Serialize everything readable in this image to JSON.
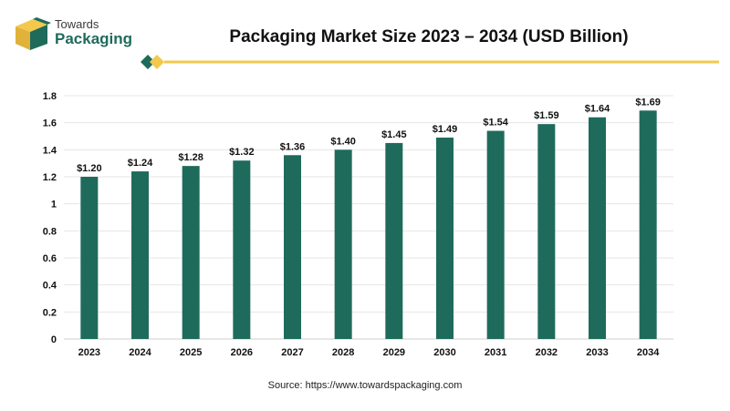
{
  "brand": {
    "line1": "Towards",
    "line2": "Packaging",
    "colors": {
      "dark_green": "#1e6b5c",
      "gold": "#f2c94c"
    }
  },
  "source": "Source: https://www.towardspackaging.com",
  "chart_data": {
    "type": "bar",
    "title": "Packaging Market Size 2023 – 2034 (USD Billion)",
    "categories": [
      "2023",
      "2024",
      "2025",
      "2026",
      "2027",
      "2028",
      "2029",
      "2030",
      "2031",
      "2032",
      "2033",
      "2034"
    ],
    "values": [
      1.2,
      1.24,
      1.28,
      1.32,
      1.36,
      1.4,
      1.45,
      1.49,
      1.54,
      1.59,
      1.64,
      1.69
    ],
    "data_labels": [
      "$1.20",
      "$1.24",
      "$1.28",
      "$1.32",
      "$1.36",
      "$1.40",
      "$1.45",
      "$1.49",
      "$1.54",
      "$1.59",
      "$1.64",
      "$1.69"
    ],
    "y_ticks": [
      0,
      0.2,
      0.4,
      0.6,
      0.8,
      1,
      1.2,
      1.4,
      1.6,
      1.8
    ],
    "y_tick_labels": [
      "0",
      "0.2",
      "0.4",
      "0.6",
      "0.8",
      "1",
      "1.2",
      "1.4",
      "1.6",
      "1.8"
    ],
    "ylim": [
      0,
      1.8
    ],
    "grid": true,
    "bar_color": "#1e6b5c"
  }
}
